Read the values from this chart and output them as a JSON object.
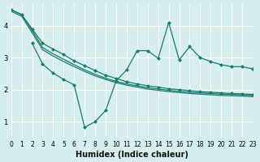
{
  "xlabel": "Humidex (Indice chaleur)",
  "ylabel": "",
  "bg_color": "#d6eeee",
  "grid_color": "#ffffff",
  "line_color": "#1a7a6e",
  "xlim": [
    0,
    23
  ],
  "ylim": [
    0.5,
    4.7
  ],
  "yticks": [
    1,
    2,
    3,
    4
  ],
  "xticks": [
    0,
    1,
    2,
    3,
    4,
    5,
    6,
    7,
    8,
    9,
    10,
    11,
    12,
    13,
    14,
    15,
    16,
    17,
    18,
    19,
    20,
    21,
    22,
    23
  ],
  "series": [
    {
      "x": [
        0,
        1,
        2,
        3,
        4,
        5,
        6,
        7,
        8,
        9,
        10,
        11,
        12,
        13,
        14,
        15,
        16,
        17,
        18,
        19,
        20,
        21,
        22,
        23
      ],
      "y": [
        4.5,
        4.35,
        3.9,
        3.45,
        3.27,
        3.1,
        2.9,
        2.75,
        2.6,
        2.45,
        2.35,
        2.25,
        2.18,
        2.12,
        2.08,
        2.03,
        2.0,
        1.97,
        1.94,
        1.92,
        1.9,
        1.88,
        1.87,
        1.85
      ],
      "marker": true
    },
    {
      "x": [
        0,
        1,
        2,
        3,
        4,
        5,
        6,
        7,
        8,
        9,
        10,
        11,
        12,
        13,
        14,
        15,
        16,
        17,
        18,
        19,
        20,
        21,
        22,
        23
      ],
      "y": [
        4.5,
        4.35,
        3.85,
        3.32,
        3.12,
        2.95,
        2.78,
        2.62,
        2.48,
        2.36,
        2.26,
        2.18,
        2.12,
        2.06,
        2.02,
        1.98,
        1.95,
        1.92,
        1.9,
        1.88,
        1.86,
        1.85,
        1.84,
        1.82
      ],
      "marker": false
    },
    {
      "x": [
        0,
        1,
        2,
        3,
        4,
        5,
        6,
        7,
        8,
        9,
        10,
        11,
        12,
        13,
        14,
        15,
        16,
        17,
        18,
        19,
        20,
        21,
        22,
        23
      ],
      "y": [
        4.45,
        4.3,
        3.78,
        3.25,
        3.05,
        2.88,
        2.72,
        2.57,
        2.43,
        2.32,
        2.22,
        2.14,
        2.08,
        2.02,
        1.98,
        1.94,
        1.91,
        1.88,
        1.86,
        1.84,
        1.82,
        1.81,
        1.8,
        1.78
      ],
      "marker": false
    },
    {
      "x": [
        2,
        3,
        4,
        5,
        6,
        7,
        8,
        9,
        10,
        11,
        12,
        13,
        14,
        15,
        16,
        17,
        18,
        19,
        20,
        21,
        22,
        23
      ],
      "y": [
        3.45,
        2.8,
        2.52,
        2.32,
        2.15,
        0.82,
        1.0,
        1.35,
        2.28,
        2.62,
        3.22,
        3.22,
        2.98,
        4.1,
        2.93,
        3.35,
        3.0,
        2.88,
        2.78,
        2.72,
        2.72,
        2.65
      ],
      "marker": true
    }
  ]
}
